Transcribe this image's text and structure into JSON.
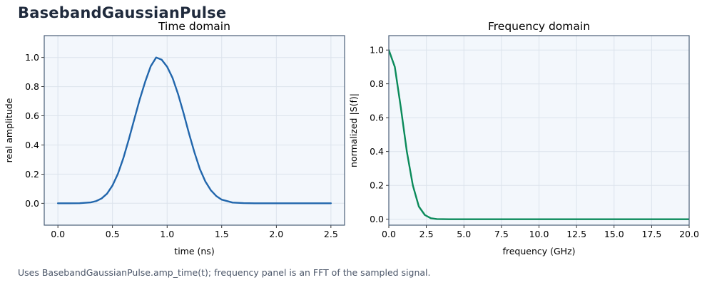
{
  "page_title": "BasebandGaussianPulse",
  "caption": "Uses BasebandGaussianPulse.amp_time(t); frequency panel is an FFT of the sampled signal.",
  "colors": {
    "panel_bg": "#f3f7fc",
    "frame": "#4a5f78",
    "grid": "#dce3ec",
    "time_series": "#2166ac",
    "freq_series": "#0a8a5a"
  },
  "chart_data": [
    {
      "id": "time",
      "type": "line",
      "title": "Time domain",
      "xlabel": "time (ns)",
      "ylabel": "real amplitude",
      "xlim": [
        -0.125,
        2.625
      ],
      "ylim": [
        -0.15,
        1.15
      ],
      "xticks": [
        0.0,
        0.5,
        1.0,
        1.5,
        2.0,
        2.5
      ],
      "xtick_labels": [
        "0.0",
        "0.5",
        "1.0",
        "1.5",
        "2.0",
        "2.5"
      ],
      "yticks": [
        0.0,
        0.2,
        0.4,
        0.6,
        0.8,
        1.0
      ],
      "ytick_labels": [
        "0.0",
        "0.2",
        "0.4",
        "0.6",
        "0.8",
        "1.0"
      ],
      "grid": true,
      "series": [
        {
          "color": "#2166ac",
          "x": [
            0.0,
            0.1,
            0.2,
            0.3,
            0.35,
            0.4,
            0.45,
            0.5,
            0.55,
            0.6,
            0.65,
            0.7,
            0.75,
            0.8,
            0.85,
            0.9,
            0.95,
            1.0,
            1.05,
            1.1,
            1.15,
            1.2,
            1.25,
            1.3,
            1.35,
            1.4,
            1.45,
            1.5,
            1.6,
            1.7,
            1.8,
            2.0,
            2.2,
            2.5
          ],
          "y": [
            0.0,
            0.0,
            0.0008,
            0.006,
            0.015,
            0.033,
            0.066,
            0.122,
            0.203,
            0.311,
            0.44,
            0.578,
            0.714,
            0.835,
            0.94,
            1.0,
            0.985,
            0.937,
            0.86,
            0.75,
            0.62,
            0.48,
            0.35,
            0.235,
            0.15,
            0.09,
            0.05,
            0.025,
            0.005,
            0.001,
            0.0,
            0.0,
            0.0,
            0.0
          ]
        }
      ]
    },
    {
      "id": "freq",
      "type": "line",
      "title": "Frequency domain",
      "xlabel": "frequency (GHz)",
      "ylabel": "normalized |S(f)|",
      "xlim": [
        0,
        20
      ],
      "ylim": [
        -0.035,
        1.085
      ],
      "xticks": [
        0.0,
        2.5,
        5.0,
        7.5,
        10.0,
        12.5,
        15.0,
        17.5,
        20.0
      ],
      "xtick_labels": [
        "0.0",
        "2.5",
        "5.0",
        "7.5",
        "10.0",
        "12.5",
        "15.0",
        "17.5",
        "20.0"
      ],
      "yticks": [
        0.0,
        0.2,
        0.4,
        0.6,
        0.8,
        1.0
      ],
      "ytick_labels": [
        "0.0",
        "0.2",
        "0.4",
        "0.6",
        "0.8",
        "1.0"
      ],
      "grid": true,
      "series": [
        {
          "color": "#0a8a5a",
          "x": [
            0.0,
            0.4,
            0.8,
            1.2,
            1.6,
            2.0,
            2.4,
            2.8,
            3.2,
            4.0,
            6.0,
            10.0,
            15.0,
            20.0
          ],
          "y": [
            1.0,
            0.9,
            0.66,
            0.4,
            0.2,
            0.075,
            0.025,
            0.006,
            0.001,
            0.0,
            0.0,
            0.0,
            0.0,
            0.0
          ]
        }
      ]
    }
  ]
}
